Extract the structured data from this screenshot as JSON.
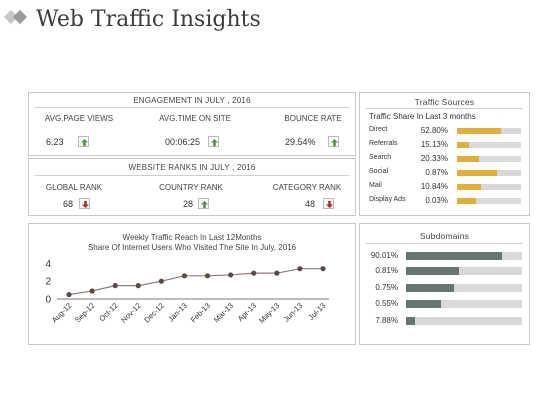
{
  "page": {
    "title": "Web Traffic Insights"
  },
  "engagement": {
    "heading": "ENGAGEMENT IN JULY , 2016",
    "metrics": [
      {
        "label": "AVG.PAGE VIEWS",
        "value": "6.23",
        "trend": "up"
      },
      {
        "label": "AVG.TIME ON SITE",
        "value": "00:06:25",
        "trend": "up"
      },
      {
        "label": "BOUNCE RATE",
        "value": "29.54%",
        "trend": "up"
      }
    ]
  },
  "ranks": {
    "heading": "WEBSITE RANKS IN JULY , 2016",
    "items": [
      {
        "label": "GLOBAL RANK",
        "value": "68",
        "trend": "down"
      },
      {
        "label": "COUNTRY RANK",
        "value": "28",
        "trend": "up"
      },
      {
        "label": "CATEGORY RANK",
        "value": "48",
        "trend": "down"
      }
    ]
  },
  "traffic_sources": {
    "heading": "Traffic Sources",
    "subheading": "Traffic Share In Last 3 months",
    "rows": [
      {
        "name": "Direct",
        "pct": "52.80%",
        "level": 0.68
      },
      {
        "name": "Referrals",
        "pct": "15.13%",
        "level": 0.18
      },
      {
        "name": "Search",
        "pct": "20.33%",
        "level": 0.35
      },
      {
        "name": "Social",
        "pct": "0.87%",
        "level": 0.63
      },
      {
        "name": "Mail",
        "pct": "10.84%",
        "level": 0.38
      },
      {
        "name": "Display Ads",
        "pct": "0.03%",
        "level": 0.3
      }
    ]
  },
  "subdomains": {
    "heading": "Subdomains",
    "rows": [
      {
        "pct": "90.01%",
        "level": 0.83
      },
      {
        "pct": "0.81%",
        "level": 0.46
      },
      {
        "pct": "0.75%",
        "level": 0.41
      },
      {
        "pct": "0.55%",
        "level": 0.3
      },
      {
        "pct": "7.88%",
        "level": 0.08
      }
    ]
  },
  "chart_data": {
    "type": "line",
    "title": "Weekly Traffic Reach In Last 12Months",
    "subtitle": "Share Of Internet Users Who Visited The Site In July, 2016",
    "categories": [
      "Aug-12",
      "Sep-12",
      "Oct-12",
      "Nov-12",
      "Dec-12",
      "Jan-13",
      "Feb-13",
      "Mar-13",
      "Apr-13",
      "May-13",
      "Jun-13",
      "Jul-13"
    ],
    "values": [
      0.5,
      0.9,
      1.5,
      1.5,
      2.0,
      2.6,
      2.6,
      2.7,
      2.9,
      2.9,
      3.4,
      3.4
    ],
    "yticks": [
      0,
      2,
      4
    ],
    "ylim": [
      0,
      4.6
    ],
    "grid": false,
    "colors": {
      "line": "#8b7d77",
      "marker": "#5a4a42"
    }
  },
  "colors": {
    "source_bar": "#e2ae3c",
    "subdomain_bar": "#66756f",
    "up": "#4a9a3c",
    "down": "#b5282a"
  }
}
